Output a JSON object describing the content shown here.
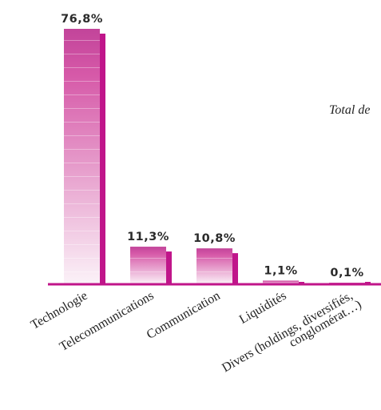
{
  "chart_data": {
    "type": "bar",
    "categories": [
      [
        "Technologie"
      ],
      [
        "Telecommunications"
      ],
      [
        "Communication"
      ],
      [
        "Liquidités"
      ],
      [
        "Divers (holdings, diversifiés,",
        "conglomérat…)"
      ]
    ],
    "values": [
      76.8,
      11.3,
      10.8,
      1.1,
      0.1
    ],
    "value_labels": [
      "76,8%",
      "11,3%",
      "10,8%",
      "1,1%",
      "0,1%"
    ],
    "annotation": "Total de",
    "colors": {
      "bar_top": "#c2449a",
      "bar_bottom": "#fbf2f8",
      "bar_shadow": "#c0158a",
      "baseline": "#c0158a"
    },
    "ylim": [
      0,
      76.8
    ]
  }
}
